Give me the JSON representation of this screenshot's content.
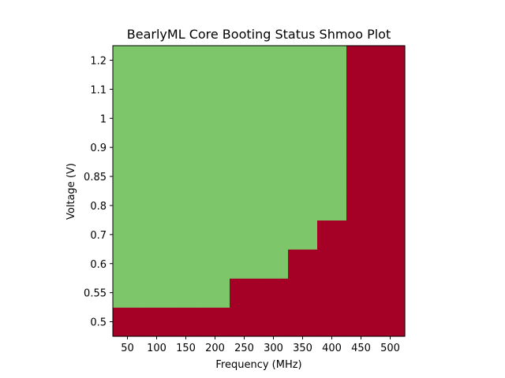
{
  "chart_data": {
    "type": "heatmap",
    "title": "BearlyML Core Booting Status Shmoo Plot",
    "xlabel": "Frequency (MHz)",
    "ylabel": "Voltage (V)",
    "x": [
      "50",
      "100",
      "150",
      "200",
      "250",
      "300",
      "350",
      "400",
      "450",
      "500"
    ],
    "y": [
      "0.5",
      "0.55",
      "0.6",
      "0.7",
      "0.8",
      "0.85",
      "0.9",
      "1",
      "1.1",
      "1.2"
    ],
    "status": [
      [
        0,
        0,
        0,
        0,
        0,
        0,
        0,
        0,
        0,
        0
      ],
      [
        1,
        1,
        1,
        1,
        0,
        0,
        0,
        0,
        0,
        0
      ],
      [
        1,
        1,
        1,
        1,
        1,
        1,
        0,
        0,
        0,
        0
      ],
      [
        1,
        1,
        1,
        1,
        1,
        1,
        1,
        0,
        0,
        0
      ],
      [
        1,
        1,
        1,
        1,
        1,
        1,
        1,
        1,
        0,
        0
      ],
      [
        1,
        1,
        1,
        1,
        1,
        1,
        1,
        1,
        0,
        0
      ],
      [
        1,
        1,
        1,
        1,
        1,
        1,
        1,
        1,
        0,
        0
      ],
      [
        1,
        1,
        1,
        1,
        1,
        1,
        1,
        1,
        0,
        0
      ],
      [
        1,
        1,
        1,
        1,
        1,
        1,
        1,
        1,
        0,
        0
      ],
      [
        1,
        1,
        1,
        1,
        1,
        1,
        1,
        1,
        0,
        0
      ]
    ],
    "colors": {
      "pass": "#7dc66a",
      "fail": "#a50026"
    },
    "grid": false
  }
}
